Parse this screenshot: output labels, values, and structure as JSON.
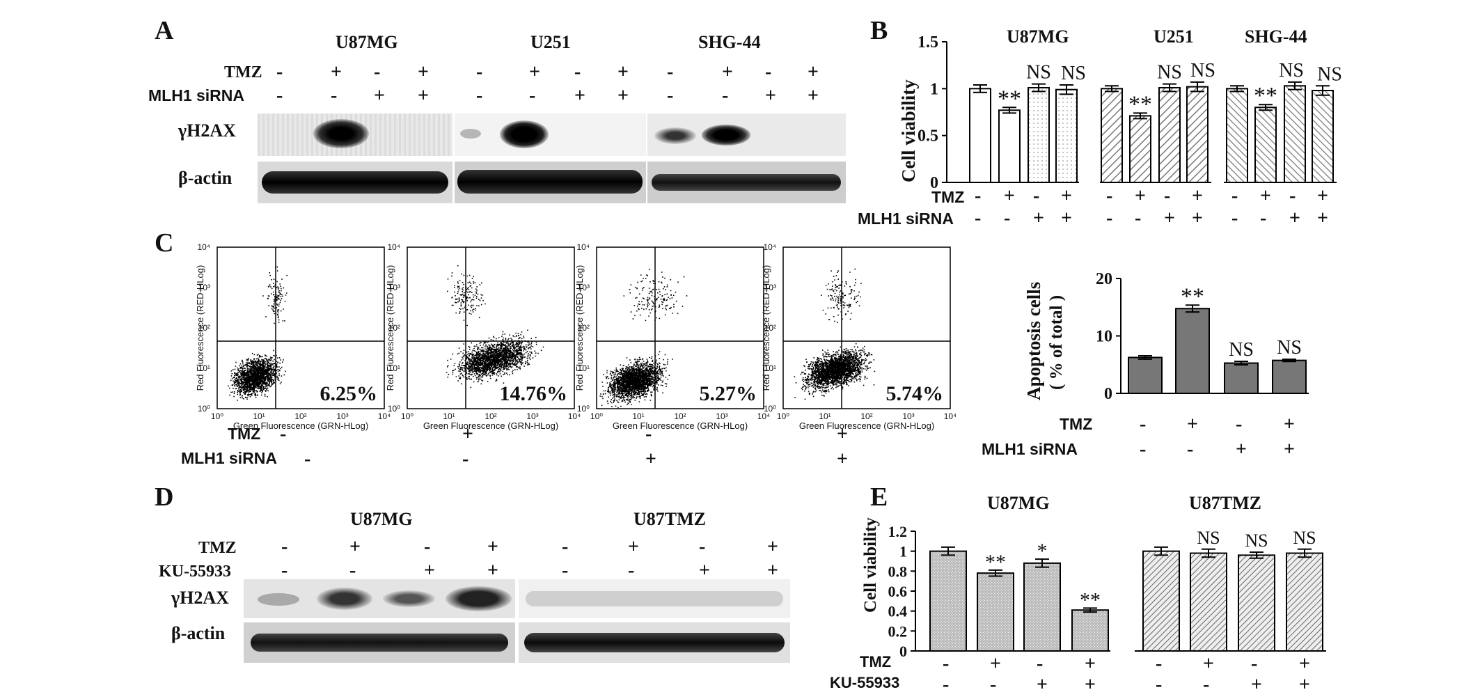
{
  "panels": {
    "A": "A",
    "B": "B",
    "C": "C",
    "D": "D",
    "E": "E"
  },
  "A": {
    "cell_lines": [
      "U87MG",
      "U251",
      "SHG-44"
    ],
    "row_labels": {
      "tmz": "TMZ",
      "sirna": "MLH1 siRNA",
      "gh2ax": "γH2AX",
      "actin": "β-actin"
    },
    "tmz": [
      "-",
      "+",
      "-",
      "+",
      "-",
      "+",
      "-",
      "+",
      "-",
      "+",
      "-",
      "+"
    ],
    "sirna": [
      "-",
      "-",
      "+",
      "+",
      "-",
      "-",
      "+",
      "+",
      "-",
      "-",
      "+",
      "+"
    ]
  },
  "B": {
    "ylabel": "Cell viability",
    "yticks": [
      "0",
      "0.5",
      "1",
      "1.5"
    ],
    "row_labels": {
      "tmz": "TMZ",
      "sirna": "MLH1 siRNA"
    },
    "tmz": [
      "-",
      "+",
      "-",
      "+",
      "-",
      "+",
      "-",
      "+",
      "-",
      "+",
      "-",
      "+"
    ],
    "sirna": [
      "-",
      "-",
      "+",
      "+",
      "-",
      "-",
      "+",
      "+",
      "-",
      "-",
      "+",
      "+"
    ]
  },
  "C": {
    "xlabel": "Green Fluorescence (GRN-HLog)",
    "ylabel": "Red Fluorescence (RED-HLog)",
    "xticks": [
      "10⁰",
      "10¹",
      "10²",
      "10³",
      "10⁴"
    ],
    "yticks": [
      "10⁰",
      "10¹",
      "10²",
      "10³",
      "10⁴"
    ],
    "percents": [
      "6.25%",
      "14.76%",
      "5.27%",
      "5.74%"
    ],
    "row_labels": {
      "tmz": "TMZ",
      "sirna": "MLH1 siRNA"
    },
    "tmz": [
      "-",
      "+",
      "-",
      "+"
    ],
    "sirna": [
      "-",
      "-",
      "+",
      "+"
    ]
  },
  "C2": {
    "ylabel1": "Apoptosis cells",
    "ylabel2": "( % of total )",
    "yticks": [
      "0",
      "10",
      "20"
    ],
    "row_labels": {
      "tmz": "TMZ",
      "sirna": "MLH1 siRNA"
    },
    "tmz": [
      "-",
      "+",
      "-",
      "+"
    ],
    "sirna": [
      "-",
      "-",
      "+",
      "+"
    ]
  },
  "D": {
    "cell_lines": [
      "U87MG",
      "U87TMZ"
    ],
    "row_labels": {
      "tmz": "TMZ",
      "ku": "KU-55933",
      "gh2ax": "γH2AX",
      "actin": "β-actin"
    },
    "tmz": [
      "-",
      "+",
      "-",
      "+",
      "-",
      "+",
      "-",
      "+"
    ],
    "ku": [
      "-",
      "-",
      "+",
      "+",
      "-",
      "-",
      "+",
      "+"
    ]
  },
  "E": {
    "ylabel": "Cell viability",
    "yticks": [
      "0",
      "0.2",
      "0.4",
      "0.6",
      "0.8",
      "1",
      "1.2"
    ],
    "row_labels": {
      "tmz": "TMZ",
      "ku": "KU-55933"
    },
    "tmz": [
      "-",
      "+",
      "-",
      "+",
      "-",
      "+",
      "-",
      "+"
    ],
    "ku": [
      "-",
      "-",
      "+",
      "+",
      "-",
      "-",
      "+",
      "+"
    ]
  },
  "chart_data": [
    {
      "id": "B",
      "type": "bar",
      "ylabel": "Cell viability",
      "ylim": [
        0,
        1.5
      ],
      "groups": [
        "U87MG",
        "U251",
        "SHG-44"
      ],
      "values": [
        1.0,
        0.77,
        1.01,
        0.99,
        1.0,
        0.71,
        1.01,
        1.02,
        1.0,
        0.8,
        1.03,
        0.98
      ],
      "errors": [
        0.04,
        0.03,
        0.04,
        0.05,
        0.03,
        0.03,
        0.04,
        0.05,
        0.03,
        0.03,
        0.04,
        0.05
      ],
      "annotations": [
        "",
        "**",
        "NS",
        "NS",
        "",
        "**",
        "NS",
        "NS",
        "",
        "**",
        "NS",
        "NS"
      ],
      "fills": [
        "white",
        "white",
        "dots",
        "dots",
        "hatch",
        "hatch",
        "hatch",
        "hatch",
        "hatch2",
        "hatch2",
        "hatch2",
        "hatch2"
      ]
    },
    {
      "id": "C-bar",
      "type": "bar",
      "ylabel": "Apoptosis cells ( % of total )",
      "ylim": [
        0,
        20
      ],
      "values": [
        6.25,
        14.76,
        5.27,
        5.74
      ],
      "errors": [
        0.3,
        0.6,
        0.3,
        0.2
      ],
      "annotations": [
        "",
        "**",
        "NS",
        "NS"
      ]
    },
    {
      "id": "E",
      "type": "bar",
      "ylabel": "Cell viability",
      "ylim": [
        0,
        1.2
      ],
      "groups": [
        "U87MG",
        "U87TMZ"
      ],
      "values": [
        1.0,
        0.78,
        0.88,
        0.41,
        1.0,
        0.98,
        0.96,
        0.98
      ],
      "errors": [
        0.04,
        0.03,
        0.04,
        0.02,
        0.04,
        0.04,
        0.03,
        0.04
      ],
      "annotations": [
        "",
        "**",
        "*",
        "**",
        "",
        "NS",
        "NS",
        "NS"
      ]
    }
  ]
}
